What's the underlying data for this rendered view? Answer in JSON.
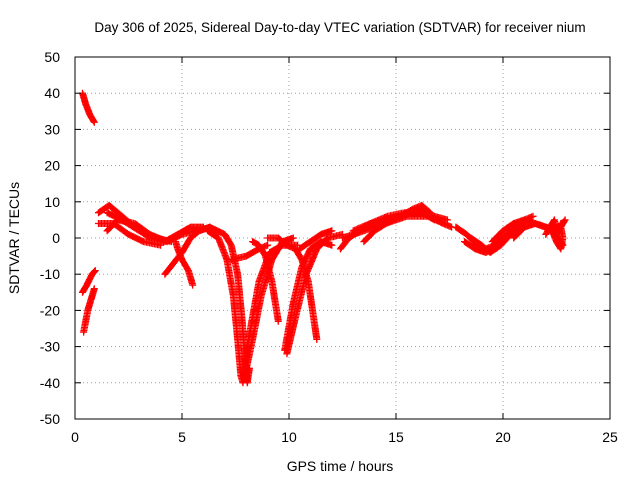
{
  "chart_data": {
    "type": "scatter",
    "title": "Day 306 of 2025, Sidereal Day-to-day VTEC variation (SDTVAR) for receiver nium",
    "xlabel": "GPS time / hours",
    "ylabel": "SDTVAR / TECUs",
    "xlim": [
      0,
      25
    ],
    "ylim": [
      -50,
      50
    ],
    "xticks": [
      0,
      5,
      10,
      15,
      20,
      25
    ],
    "yticks": [
      -50,
      -40,
      -30,
      -20,
      -10,
      0,
      10,
      20,
      30,
      40,
      50
    ],
    "grid": true,
    "marker": "+",
    "series_color": "#ff0000",
    "arcs": [
      {
        "name": "arc-1",
        "points": [
          [
            0.35,
            40
          ],
          [
            0.5,
            37
          ],
          [
            0.7,
            34
          ],
          [
            0.9,
            32
          ]
        ]
      },
      {
        "name": "arc-2",
        "points": [
          [
            0.35,
            -15
          ],
          [
            0.55,
            -13
          ],
          [
            0.8,
            -10
          ],
          [
            0.95,
            -9
          ]
        ]
      },
      {
        "name": "arc-3",
        "points": [
          [
            0.4,
            -26
          ],
          [
            0.5,
            -23
          ],
          [
            0.6,
            -20
          ],
          [
            0.75,
            -17
          ],
          [
            0.9,
            -14
          ]
        ]
      },
      {
        "name": "arc-4",
        "points": [
          [
            1.1,
            7
          ],
          [
            1.6,
            9
          ],
          [
            2.2,
            6
          ],
          [
            2.8,
            3
          ],
          [
            3.5,
            0
          ],
          [
            4.2,
            -1
          ],
          [
            4.8,
            1
          ],
          [
            5.4,
            3
          ],
          [
            6.0,
            3
          ]
        ]
      },
      {
        "name": "arc-5",
        "points": [
          [
            1.1,
            4
          ],
          [
            1.8,
            4
          ],
          [
            2.5,
            1
          ],
          [
            3.2,
            -1
          ],
          [
            4.0,
            -2
          ]
        ]
      },
      {
        "name": "arc-6",
        "points": [
          [
            1.5,
            2
          ],
          [
            2.0,
            5
          ],
          [
            2.8,
            4
          ],
          [
            3.5,
            1
          ],
          [
            4.3,
            -1
          ],
          [
            5.0,
            1
          ],
          [
            5.7,
            2
          ]
        ]
      },
      {
        "name": "arc-7",
        "points": [
          [
            1.5,
            7
          ],
          [
            2.2,
            5
          ],
          [
            3.0,
            2
          ],
          [
            3.8,
            0
          ],
          [
            4.5,
            -1
          ]
        ]
      },
      {
        "name": "arc-8",
        "points": [
          [
            4.2,
            -10
          ],
          [
            4.6,
            -7
          ],
          [
            5.0,
            -4
          ],
          [
            5.4,
            0
          ],
          [
            5.8,
            2
          ],
          [
            6.3,
            3
          ]
        ]
      },
      {
        "name": "arc-9",
        "points": [
          [
            5.5,
            -13
          ],
          [
            5.3,
            -9
          ],
          [
            5.0,
            -6
          ],
          [
            4.8,
            -3
          ],
          [
            4.7,
            -1
          ]
        ]
      },
      {
        "name": "arc-10",
        "points": [
          [
            5.8,
            2
          ],
          [
            6.3,
            3
          ],
          [
            7.0,
            1
          ],
          [
            7.3,
            -2
          ],
          [
            7.6,
            -10
          ],
          [
            7.8,
            -22
          ],
          [
            7.95,
            -34
          ],
          [
            8.05,
            -40
          ],
          [
            8.15,
            -36
          ]
        ]
      },
      {
        "name": "arc-11",
        "points": [
          [
            6.2,
            2
          ],
          [
            6.7,
            0
          ],
          [
            7.1,
            -6
          ],
          [
            7.4,
            -16
          ],
          [
            7.6,
            -28
          ],
          [
            7.75,
            -38
          ],
          [
            7.85,
            -40
          ]
        ]
      },
      {
        "name": "arc-12",
        "points": [
          [
            7.9,
            -39
          ],
          [
            8.3,
            -28
          ],
          [
            8.7,
            -16
          ],
          [
            9.2,
            -6
          ],
          [
            9.7,
            -1
          ],
          [
            10.2,
            0
          ]
        ]
      },
      {
        "name": "arc-13",
        "points": [
          [
            7.8,
            -38
          ],
          [
            8.2,
            -25
          ],
          [
            8.6,
            -12
          ],
          [
            9.1,
            -4
          ],
          [
            9.7,
            -2
          ],
          [
            10.4,
            -2
          ]
        ]
      },
      {
        "name": "arc-14",
        "points": [
          [
            9.5,
            -23
          ],
          [
            9.2,
            -12
          ],
          [
            8.9,
            -5
          ],
          [
            8.6,
            -2
          ],
          [
            8.3,
            -1
          ]
        ]
      },
      {
        "name": "arc-15",
        "points": [
          [
            7.3,
            -6
          ],
          [
            8.0,
            -5
          ],
          [
            8.6,
            -3
          ],
          [
            9.0,
            -2
          ]
        ]
      },
      {
        "name": "arc-16",
        "points": [
          [
            9.8,
            -31
          ],
          [
            10.2,
            -18
          ],
          [
            10.6,
            -8
          ],
          [
            11.0,
            -3
          ],
          [
            11.5,
            -1
          ],
          [
            12.0,
            -2
          ]
        ]
      },
      {
        "name": "arc-17",
        "points": [
          [
            9.9,
            -32
          ],
          [
            10.3,
            -22
          ],
          [
            10.8,
            -10
          ],
          [
            11.3,
            -3
          ],
          [
            11.8,
            0
          ],
          [
            12.5,
            1
          ]
        ]
      },
      {
        "name": "arc-18",
        "points": [
          [
            11.3,
            -28
          ],
          [
            11.1,
            -20
          ],
          [
            10.9,
            -12
          ],
          [
            10.6,
            -6
          ],
          [
            10.3,
            -3
          ],
          [
            9.9,
            -2
          ],
          [
            9.5,
            0
          ],
          [
            9.0,
            0
          ]
        ]
      },
      {
        "name": "arc-19",
        "points": [
          [
            10.5,
            -3
          ],
          [
            11.0,
            -1
          ],
          [
            11.5,
            1
          ],
          [
            12.0,
            2
          ]
        ]
      },
      {
        "name": "arc-20",
        "points": [
          [
            12.4,
            -3
          ],
          [
            12.8,
            0
          ],
          [
            13.3,
            2
          ],
          [
            13.8,
            4
          ],
          [
            14.5,
            5
          ],
          [
            15.2,
            6
          ],
          [
            15.8,
            7
          ],
          [
            16.3,
            8
          ]
        ]
      },
      {
        "name": "arc-21",
        "points": [
          [
            13.0,
            2
          ],
          [
            13.8,
            4
          ],
          [
            14.6,
            6
          ],
          [
            15.4,
            7
          ],
          [
            16.2,
            7
          ],
          [
            16.8,
            6
          ],
          [
            17.4,
            5
          ]
        ]
      },
      {
        "name": "arc-22",
        "points": [
          [
            12.5,
            0
          ],
          [
            13.5,
            2
          ],
          [
            14.5,
            4
          ],
          [
            15.5,
            6
          ],
          [
            16.5,
            6
          ],
          [
            17.2,
            4
          ],
          [
            17.6,
            3
          ]
        ]
      },
      {
        "name": "arc-23",
        "points": [
          [
            13.5,
            -1
          ],
          [
            14.0,
            2
          ],
          [
            14.8,
            5
          ],
          [
            15.6,
            7
          ],
          [
            16.2,
            7
          ],
          [
            16.8,
            5
          ]
        ]
      },
      {
        "name": "arc-24",
        "points": [
          [
            14.5,
            4
          ],
          [
            15.2,
            6
          ],
          [
            15.8,
            8
          ],
          [
            16.2,
            9
          ],
          [
            16.6,
            7
          ]
        ]
      },
      {
        "name": "arc-25",
        "points": [
          [
            17.8,
            3
          ],
          [
            18.3,
            1
          ],
          [
            18.8,
            -2
          ],
          [
            19.2,
            -3
          ],
          [
            19.6,
            -2
          ],
          [
            20.0,
            0
          ],
          [
            20.4,
            2
          ],
          [
            20.9,
            4
          ]
        ]
      },
      {
        "name": "arc-26",
        "points": [
          [
            18.2,
            -1
          ],
          [
            18.7,
            -3
          ],
          [
            19.2,
            -4
          ],
          [
            19.7,
            -2
          ],
          [
            20.2,
            1
          ],
          [
            20.7,
            3
          ]
        ]
      },
      {
        "name": "arc-27",
        "points": [
          [
            18.5,
            0
          ],
          [
            19.0,
            -2
          ],
          [
            19.4,
            -4
          ],
          [
            19.9,
            -2
          ],
          [
            20.5,
            2
          ],
          [
            21.0,
            5
          ],
          [
            21.4,
            6
          ]
        ]
      },
      {
        "name": "arc-28",
        "points": [
          [
            19.5,
            -1
          ],
          [
            20.0,
            2
          ],
          [
            20.5,
            4
          ],
          [
            21.0,
            5
          ],
          [
            21.5,
            4
          ],
          [
            22.0,
            3
          ],
          [
            22.6,
            2
          ]
        ]
      },
      {
        "name": "arc-29",
        "points": [
          [
            20.5,
            0
          ],
          [
            21.0,
            3
          ],
          [
            21.5,
            4
          ],
          [
            22.0,
            3
          ],
          [
            22.5,
            1
          ],
          [
            22.7,
            4
          ]
        ]
      },
      {
        "name": "arc-30",
        "points": [
          [
            22.3,
            2
          ],
          [
            22.5,
            -1
          ],
          [
            22.7,
            -3
          ],
          [
            22.8,
            0
          ],
          [
            22.7,
            3
          ],
          [
            22.9,
            5
          ]
        ]
      },
      {
        "name": "arc-31",
        "points": [
          [
            22.0,
            1
          ],
          [
            22.4,
            5
          ],
          [
            22.6,
            0
          ],
          [
            22.8,
            -2
          ]
        ]
      }
    ]
  }
}
